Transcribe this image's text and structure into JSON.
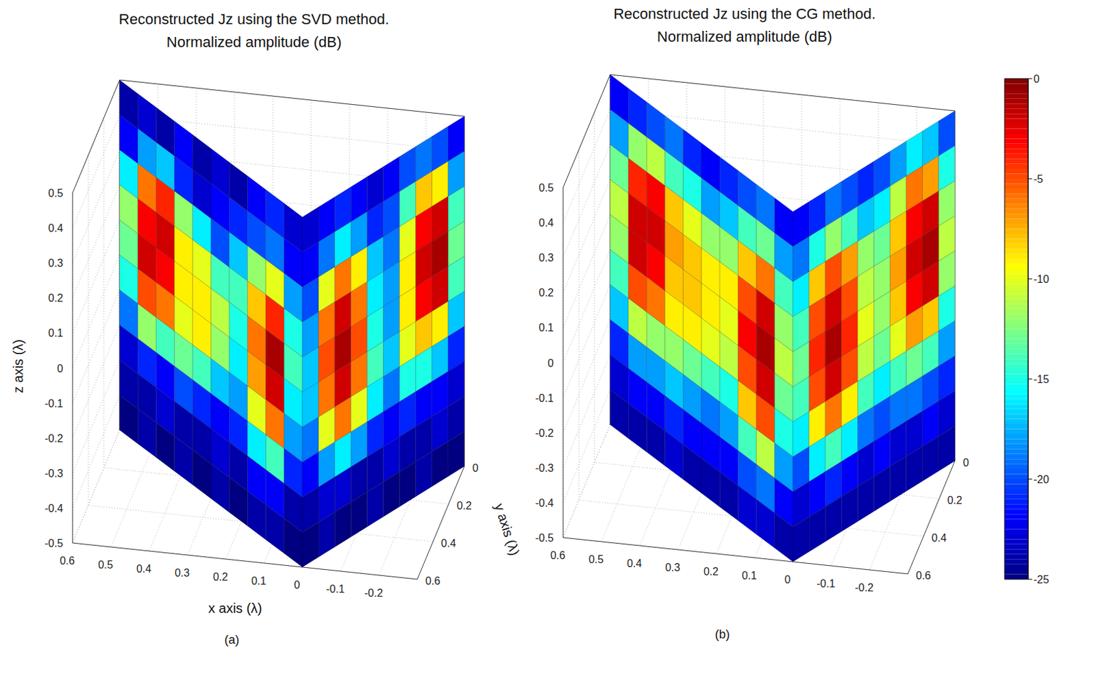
{
  "chart_data": [
    {
      "type": "surface3d",
      "title": "Reconstructed Jz using the SVD method.",
      "subtitle": "Normalized amplitude (dB)",
      "panel_label": "(a)",
      "x_label": "x axis (λ)",
      "y_label": "y axis (λ)",
      "z_label": "z axis (λ)",
      "xlim": [
        -0.3,
        0.6
      ],
      "xticks": [
        0.6,
        0.5,
        0.4,
        0.3,
        0.2,
        0.1,
        0,
        -0.1,
        -0.2
      ],
      "ylim": [
        0,
        0.6
      ],
      "yticks": [
        0,
        0.2,
        0.4,
        0.6
      ],
      "zlim": [
        -0.5,
        0.5
      ],
      "zticks": [
        -0.5,
        -0.4,
        -0.3,
        -0.2,
        -0.1,
        0,
        0.1,
        0.2,
        0.3,
        0.4,
        0.5
      ],
      "surfaces": [
        {
          "from": [
            0.6,
            0
          ],
          "to": [
            0,
            0.6
          ],
          "cells": [
            [
              -24,
              -23,
              -24,
              -22,
              -24,
              -23,
              -24,
              -22,
              -21,
              -23
            ],
            [
              -22,
              -18,
              -17,
              -21,
              -23,
              -22,
              -21,
              -20,
              -19,
              -22
            ],
            [
              -16,
              -6,
              -4,
              -12,
              -16,
              -20,
              -17,
              -12,
              -10,
              -18
            ],
            [
              -12,
              -3,
              -2,
              -9,
              -10,
              -14,
              -14,
              -8,
              -4,
              -15
            ],
            [
              -13,
              -2,
              -3,
              -9,
              -9,
              -11,
              -15,
              -6,
              -1,
              -14
            ],
            [
              -15,
              -5,
              -6,
              -10,
              -9,
              -12,
              -16,
              -7,
              -2,
              -16
            ],
            [
              -19,
              -12,
              -14,
              -13,
              -14,
              -17,
              -18,
              -10,
              -6,
              -18
            ],
            [
              -23,
              -21,
              -22,
              -20,
              -21,
              -22,
              -21,
              -16,
              -14,
              -21
            ],
            [
              -24,
              -24,
              -23,
              -24,
              -24,
              -23,
              -24,
              -22,
              -22,
              -24
            ],
            [
              -25,
              -24,
              -25,
              -24,
              -25,
              -24,
              -25,
              -24,
              -24,
              -25
            ]
          ]
        },
        {
          "from": [
            0,
            0.6
          ],
          "to": [
            -0.3,
            0
          ],
          "cells": [
            [
              -23,
              -22,
              -21,
              -22,
              -23,
              -22,
              -20,
              -19,
              -20,
              -22
            ],
            [
              -22,
              -19,
              -16,
              -18,
              -21,
              -20,
              -14,
              -8,
              -9,
              -18
            ],
            [
              -20,
              -10,
              -6,
              -9,
              -17,
              -19,
              -10,
              -3,
              -2,
              -14
            ],
            [
              -18,
              -6,
              -2,
              -6,
              -16,
              -18,
              -9,
              -2,
              -1,
              -13
            ],
            [
              -17,
              -5,
              -1,
              -5,
              -15,
              -18,
              -9,
              -3,
              -2,
              -14
            ],
            [
              -17,
              -6,
              -2,
              -6,
              -14,
              -17,
              -10,
              -8,
              -9,
              -17
            ],
            [
              -19,
              -10,
              -6,
              -10,
              -16,
              -19,
              -15,
              -15,
              -17,
              -21
            ],
            [
              -22,
              -18,
              -16,
              -18,
              -21,
              -22,
              -21,
              -22,
              -22,
              -23
            ],
            [
              -24,
              -23,
              -23,
              -24,
              -24,
              -23,
              -24,
              -24,
              -23,
              -24
            ],
            [
              -25,
              -24,
              -25,
              -25,
              -24,
              -25,
              -25,
              -24,
              -25,
              -25
            ]
          ]
        }
      ]
    },
    {
      "type": "surface3d",
      "title": "Reconstructed Jz using the CG method.",
      "subtitle": "Normalized amplitude (dB)",
      "panel_label": "(b)",
      "xlim": [
        -0.3,
        0.6
      ],
      "xticks": [
        0.6,
        0.5,
        0.4,
        0.3,
        0.2,
        0.1,
        0,
        -0.1,
        -0.2
      ],
      "ylim": [
        0,
        0.6
      ],
      "yticks": [
        0,
        0.2,
        0.4,
        0.6
      ],
      "zlim": [
        -0.5,
        0.5
      ],
      "zticks": [
        -0.5,
        -0.4,
        -0.3,
        -0.2,
        -0.1,
        0,
        0.1,
        0.2,
        0.3,
        0.4,
        0.5
      ],
      "surfaces": [
        {
          "from": [
            0.6,
            0
          ],
          "to": [
            0,
            0.6
          ],
          "cells": [
            [
              -22,
              -21,
              -20,
              -19,
              -21,
              -22,
              -21,
              -20,
              -19,
              -22
            ],
            [
              -18,
              -12,
              -11,
              -14,
              -15,
              -18,
              -17,
              -14,
              -13,
              -18
            ],
            [
              -13,
              -4,
              -3,
              -8,
              -10,
              -12,
              -12,
              -8,
              -6,
              -14
            ],
            [
              -11,
              -2,
              -2,
              -7,
              -8,
              -9,
              -9,
              -5,
              -2,
              -12
            ],
            [
              -12,
              -2,
              -3,
              -8,
              -8,
              -9,
              -10,
              -3,
              -1,
              -11
            ],
            [
              -14,
              -5,
              -6,
              -9,
              -9,
              -10,
              -11,
              -5,
              -2,
              -13
            ],
            [
              -17,
              -11,
              -12,
              -12,
              -13,
              -14,
              -15,
              -8,
              -5,
              -15
            ],
            [
              -21,
              -18,
              -18,
              -17,
              -18,
              -19,
              -18,
              -14,
              -11,
              -18
            ],
            [
              -23,
              -22,
              -22,
              -21,
              -22,
              -22,
              -22,
              -20,
              -19,
              -22
            ],
            [
              -24,
              -24,
              -24,
              -23,
              -24,
              -24,
              -24,
              -23,
              -23,
              -24
            ]
          ]
        },
        {
          "from": [
            0,
            0.6
          ],
          "to": [
            -0.3,
            0
          ],
          "cells": [
            [
              -22,
              -21,
              -19,
              -20,
              -21,
              -20,
              -18,
              -16,
              -17,
              -20
            ],
            [
              -19,
              -15,
              -12,
              -14,
              -17,
              -16,
              -11,
              -6,
              -7,
              -15
            ],
            [
              -16,
              -8,
              -5,
              -7,
              -12,
              -13,
              -8,
              -3,
              -2,
              -12
            ],
            [
              -14,
              -5,
              -2,
              -5,
              -11,
              -12,
              -7,
              -2,
              -1,
              -11
            ],
            [
              -13,
              -4,
              -1,
              -4,
              -10,
              -12,
              -8,
              -3,
              -2,
              -12
            ],
            [
              -14,
              -5,
              -2,
              -5,
              -11,
              -13,
              -10,
              -7,
              -8,
              -15
            ],
            [
              -16,
              -9,
              -6,
              -9,
              -14,
              -16,
              -14,
              -13,
              -14,
              -18
            ],
            [
              -20,
              -16,
              -14,
              -16,
              -19,
              -20,
              -19,
              -19,
              -20,
              -21
            ],
            [
              -23,
              -22,
              -21,
              -22,
              -23,
              -22,
              -23,
              -23,
              -22,
              -23
            ],
            [
              -24,
              -24,
              -24,
              -24,
              -24,
              -24,
              -24,
              -24,
              -24,
              -24
            ]
          ]
        }
      ],
      "colorbar": {
        "range": [
          -25,
          0
        ],
        "ticks": [
          0,
          -5,
          -10,
          -15,
          -20,
          -25
        ]
      }
    }
  ]
}
